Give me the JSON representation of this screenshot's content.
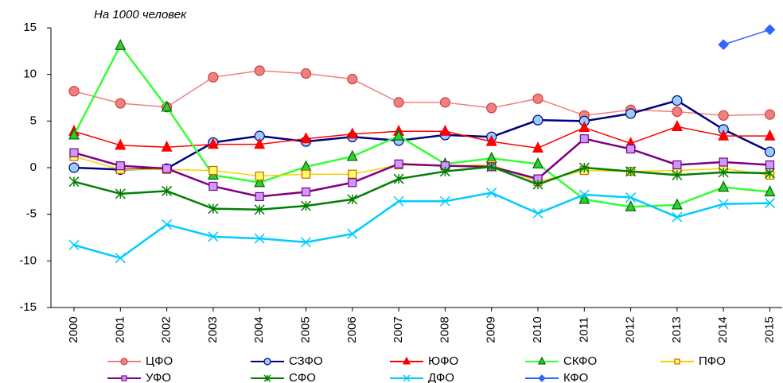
{
  "chart_data": {
    "type": "line",
    "annotation": "На 1000 человек",
    "categories": [
      "2000",
      "2001",
      "2002",
      "2003",
      "2004",
      "2005",
      "2006",
      "2007",
      "2008",
      "2009",
      "2010",
      "2011",
      "2012",
      "2013",
      "2014",
      "2015"
    ],
    "ylim": [
      -15,
      15
    ],
    "yticks": [
      -15,
      -10,
      -5,
      0,
      5,
      10,
      15
    ],
    "grid": false,
    "series": [
      {
        "name": "ЦФО",
        "color": "#f08080",
        "marker": "circle",
        "marker_fill": "#f08080",
        "values": [
          8.2,
          6.9,
          6.5,
          9.7,
          10.4,
          10.1,
          9.5,
          7.0,
          7.0,
          6.4,
          7.4,
          5.6,
          6.2,
          6.0,
          5.6,
          5.7
        ]
      },
      {
        "name": "СЗФО",
        "color": "#000080",
        "marker": "circle",
        "marker_fill": "#99ccff",
        "values": [
          0.0,
          -0.2,
          -0.1,
          2.7,
          3.4,
          2.8,
          3.3,
          2.9,
          3.5,
          3.3,
          5.1,
          5.0,
          5.8,
          7.2,
          4.1,
          1.7
        ]
      },
      {
        "name": "ЮФО",
        "color": "#ff0000",
        "marker": "triangle",
        "marker_fill": "#ff0000",
        "values": [
          3.9,
          2.4,
          2.2,
          2.5,
          2.5,
          3.1,
          3.6,
          3.9,
          3.9,
          2.8,
          2.1,
          4.3,
          2.6,
          4.4,
          3.4,
          3.4
        ]
      },
      {
        "name": "СКФО",
        "color": "#33ff33",
        "marker": "triangle",
        "marker_fill": "#33cc33",
        "values": [
          3.5,
          13.1,
          6.5,
          -0.8,
          -1.6,
          0.1,
          1.2,
          3.4,
          0.4,
          1.0,
          0.4,
          -3.4,
          -4.2,
          -4.0,
          -2.1,
          -2.6
        ]
      },
      {
        "name": "ПФО",
        "color": "#ffcc00",
        "marker": "square",
        "marker_fill": "#ffff66",
        "values": [
          1.2,
          -0.2,
          -0.2,
          -0.3,
          -0.9,
          -0.7,
          -0.7,
          0.3,
          0.2,
          0.3,
          -1.5,
          -0.3,
          -0.4,
          -0.3,
          -0.1,
          -0.8
        ]
      },
      {
        "name": "УФО",
        "color": "#800080",
        "marker": "square",
        "marker_fill": "#cc99ff",
        "values": [
          1.6,
          0.2,
          -0.1,
          -2.0,
          -3.1,
          -2.6,
          -1.6,
          0.4,
          0.2,
          0.1,
          -1.2,
          3.1,
          2.0,
          0.3,
          0.6,
          0.3
        ]
      },
      {
        "name": "СФО",
        "color": "#008000",
        "marker": "star",
        "marker_fill": "#008000",
        "values": [
          -1.5,
          -2.8,
          -2.5,
          -4.4,
          -4.5,
          -4.1,
          -3.4,
          -1.2,
          -0.4,
          0.1,
          -1.8,
          0.0,
          -0.4,
          -0.8,
          -0.5,
          -0.6
        ]
      },
      {
        "name": "ДФО",
        "color": "#00ccff",
        "marker": "x",
        "marker_fill": "#00ccff",
        "values": [
          -8.3,
          -9.7,
          -6.1,
          -7.4,
          -7.6,
          -8.0,
          -7.1,
          -3.6,
          -3.6,
          -2.7,
          -4.9,
          -2.9,
          -3.2,
          -5.3,
          -3.9,
          -3.8
        ]
      },
      {
        "name": "КФО",
        "color": "#3366ff",
        "marker": "diamond",
        "marker_fill": "#3366ff",
        "values": [
          null,
          null,
          null,
          null,
          null,
          null,
          null,
          null,
          null,
          null,
          null,
          null,
          null,
          null,
          13.2,
          14.8
        ]
      }
    ]
  }
}
